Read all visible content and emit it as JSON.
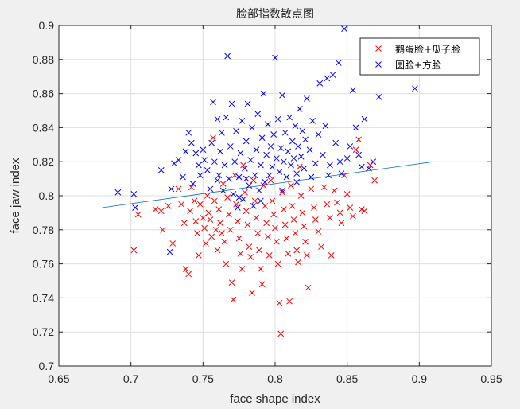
{
  "chart_data": {
    "type": "scatter",
    "title": "脸部指数散点图",
    "xlabel": "face shape index",
    "ylabel": "face jaw index",
    "xlim": [
      0.65,
      0.95
    ],
    "ylim": [
      0.7,
      0.9
    ],
    "xticks": [
      "0.65",
      "0.7",
      "0.75",
      "0.8",
      "0.85",
      "0.9",
      "0.95"
    ],
    "yticks": [
      "0.7",
      "0.72",
      "0.74",
      "0.76",
      "0.78",
      "0.8",
      "0.82",
      "0.84",
      "0.86",
      "0.88",
      "0.9"
    ],
    "grid": true,
    "legend_position": "top-right",
    "series": [
      {
        "name": "鹅蛋脸+瓜子脸",
        "color": "#ff0000",
        "marker": "x",
        "points": [
          [
            0.702,
            0.768
          ],
          [
            0.705,
            0.789
          ],
          [
            0.717,
            0.792
          ],
          [
            0.721,
            0.791
          ],
          [
            0.722,
            0.78
          ],
          [
            0.726,
            0.794
          ],
          [
            0.729,
            0.772
          ],
          [
            0.733,
            0.804
          ],
          [
            0.735,
            0.795
          ],
          [
            0.737,
            0.784
          ],
          [
            0.738,
            0.757
          ],
          [
            0.74,
            0.754
          ],
          [
            0.741,
            0.791
          ],
          [
            0.742,
            0.805
          ],
          [
            0.744,
            0.797
          ],
          [
            0.745,
            0.785
          ],
          [
            0.746,
            0.778
          ],
          [
            0.747,
            0.765
          ],
          [
            0.748,
            0.795
          ],
          [
            0.75,
            0.787
          ],
          [
            0.751,
            0.781
          ],
          [
            0.752,
            0.772
          ],
          [
            0.753,
            0.8
          ],
          [
            0.754,
            0.79
          ],
          [
            0.755,
            0.786
          ],
          [
            0.756,
            0.776
          ],
          [
            0.757,
            0.834
          ],
          [
            0.758,
            0.797
          ],
          [
            0.759,
            0.78
          ],
          [
            0.76,
            0.768
          ],
          [
            0.761,
            0.792
          ],
          [
            0.762,
            0.784
          ],
          [
            0.763,
            0.778
          ],
          [
            0.764,
            0.807
          ],
          [
            0.765,
            0.773
          ],
          [
            0.766,
            0.76
          ],
          [
            0.767,
            0.799
          ],
          [
            0.768,
            0.789
          ],
          [
            0.769,
            0.78
          ],
          [
            0.77,
            0.749
          ],
          [
            0.771,
            0.739
          ],
          [
            0.772,
            0.812
          ],
          [
            0.773,
            0.795
          ],
          [
            0.774,
            0.785
          ],
          [
            0.775,
            0.775
          ],
          [
            0.776,
            0.766
          ],
          [
            0.777,
            0.757
          ],
          [
            0.778,
            0.818
          ],
          [
            0.779,
            0.802
          ],
          [
            0.78,
            0.791
          ],
          [
            0.781,
            0.783
          ],
          [
            0.782,
            0.77
          ],
          [
            0.783,
            0.764
          ],
          [
            0.784,
            0.743
          ],
          [
            0.785,
            0.809
          ],
          [
            0.786,
            0.797
          ],
          [
            0.787,
            0.787
          ],
          [
            0.788,
            0.778
          ],
          [
            0.789,
            0.768
          ],
          [
            0.79,
            0.757
          ],
          [
            0.791,
            0.748
          ],
          [
            0.792,
            0.806
          ],
          [
            0.793,
            0.794
          ],
          [
            0.794,
            0.784
          ],
          [
            0.795,
            0.776
          ],
          [
            0.796,
            0.765
          ],
          [
            0.797,
            0.809
          ],
          [
            0.798,
            0.797
          ],
          [
            0.799,
            0.789
          ],
          [
            0.8,
            0.781
          ],
          [
            0.801,
            0.773
          ],
          [
            0.802,
            0.76
          ],
          [
            0.803,
            0.737
          ],
          [
            0.804,
            0.719
          ],
          [
            0.805,
            0.802
          ],
          [
            0.806,
            0.792
          ],
          [
            0.807,
            0.783
          ],
          [
            0.808,
            0.775
          ],
          [
            0.809,
            0.766
          ],
          [
            0.81,
            0.738
          ],
          [
            0.811,
            0.806
          ],
          [
            0.812,
            0.794
          ],
          [
            0.813,
            0.786
          ],
          [
            0.814,
            0.778
          ],
          [
            0.815,
            0.768
          ],
          [
            0.816,
            0.761
          ],
          [
            0.817,
            0.817
          ],
          [
            0.818,
            0.8
          ],
          [
            0.819,
            0.79
          ],
          [
            0.82,
            0.782
          ],
          [
            0.821,
            0.773
          ],
          [
            0.822,
            0.765
          ],
          [
            0.823,
            0.746
          ],
          [
            0.825,
            0.804
          ],
          [
            0.827,
            0.793
          ],
          [
            0.828,
            0.786
          ],
          [
            0.83,
            0.779
          ],
          [
            0.832,
            0.77
          ],
          [
            0.834,
            0.805
          ],
          [
            0.836,
            0.795
          ],
          [
            0.838,
            0.787
          ],
          [
            0.839,
            0.765
          ],
          [
            0.841,
            0.803
          ],
          [
            0.843,
            0.796
          ],
          [
            0.845,
            0.79
          ],
          [
            0.846,
            0.784
          ],
          [
            0.848,
            0.812
          ],
          [
            0.85,
            0.801
          ],
          [
            0.852,
            0.793
          ],
          [
            0.854,
            0.788
          ],
          [
            0.856,
            0.827
          ],
          [
            0.858,
            0.833
          ],
          [
            0.86,
            0.792
          ],
          [
            0.862,
            0.791
          ],
          [
            0.866,
            0.818
          ],
          [
            0.869,
            0.809
          ]
        ]
      },
      {
        "name": "圆脸+方脸",
        "color": "#0000ff",
        "marker": "x",
        "points": [
          [
            0.691,
            0.802
          ],
          [
            0.702,
            0.801
          ],
          [
            0.703,
            0.793
          ],
          [
            0.721,
            0.815
          ],
          [
            0.727,
            0.767
          ],
          [
            0.728,
            0.804
          ],
          [
            0.73,
            0.819
          ],
          [
            0.733,
            0.821
          ],
          [
            0.736,
            0.811
          ],
          [
            0.738,
            0.826
          ],
          [
            0.74,
            0.837
          ],
          [
            0.742,
            0.831
          ],
          [
            0.743,
            0.807
          ],
          [
            0.745,
            0.825
          ],
          [
            0.747,
            0.818
          ],
          [
            0.748,
            0.812
          ],
          [
            0.75,
            0.827
          ],
          [
            0.751,
            0.821
          ],
          [
            0.753,
            0.815
          ],
          [
            0.755,
            0.804
          ],
          [
            0.756,
            0.831
          ],
          [
            0.757,
            0.855
          ],
          [
            0.758,
            0.82
          ],
          [
            0.76,
            0.845
          ],
          [
            0.761,
            0.812
          ],
          [
            0.762,
            0.826
          ],
          [
            0.763,
            0.837
          ],
          [
            0.764,
            0.803
          ],
          [
            0.765,
            0.818
          ],
          [
            0.766,
            0.846
          ],
          [
            0.767,
            0.882
          ],
          [
            0.768,
            0.81
          ],
          [
            0.769,
            0.829
          ],
          [
            0.77,
            0.854
          ],
          [
            0.771,
            0.801
          ],
          [
            0.772,
            0.82
          ],
          [
            0.773,
            0.838
          ],
          [
            0.774,
            0.793
          ],
          [
            0.775,
            0.811
          ],
          [
            0.776,
            0.825
          ],
          [
            0.777,
            0.844
          ],
          [
            0.778,
            0.798
          ],
          [
            0.779,
            0.816
          ],
          [
            0.78,
            0.832
          ],
          [
            0.781,
            0.854
          ],
          [
            0.782,
            0.806
          ],
          [
            0.783,
            0.821
          ],
          [
            0.784,
            0.84
          ],
          [
            0.785,
            0.794
          ],
          [
            0.786,
            0.812
          ],
          [
            0.787,
            0.827
          ],
          [
            0.788,
            0.848
          ],
          [
            0.789,
            0.803
          ],
          [
            0.79,
            0.818
          ],
          [
            0.791,
            0.834
          ],
          [
            0.792,
            0.86
          ],
          [
            0.793,
            0.808
          ],
          [
            0.794,
            0.824
          ],
          [
            0.795,
            0.842
          ],
          [
            0.796,
            0.812
          ],
          [
            0.797,
            0.829
          ],
          [
            0.798,
            0.817
          ],
          [
            0.799,
            0.836
          ],
          [
            0.8,
            0.881
          ],
          [
            0.801,
            0.822
          ],
          [
            0.802,
            0.845
          ],
          [
            0.803,
            0.814
          ],
          [
            0.804,
            0.828
          ],
          [
            0.805,
            0.859
          ],
          [
            0.806,
            0.82
          ],
          [
            0.807,
            0.837
          ],
          [
            0.808,
            0.811
          ],
          [
            0.809,
            0.826
          ],
          [
            0.81,
            0.846
          ],
          [
            0.811,
            0.818
          ],
          [
            0.812,
            0.832
          ],
          [
            0.813,
            0.822
          ],
          [
            0.814,
            0.841
          ],
          [
            0.815,
            0.813
          ],
          [
            0.816,
            0.829
          ],
          [
            0.817,
            0.851
          ],
          [
            0.818,
            0.823
          ],
          [
            0.819,
            0.838
          ],
          [
            0.82,
            0.816
          ],
          [
            0.821,
            0.833
          ],
          [
            0.822,
            0.857
          ],
          [
            0.824,
            0.827
          ],
          [
            0.826,
            0.844
          ],
          [
            0.828,
            0.819
          ],
          [
            0.83,
            0.836
          ],
          [
            0.831,
            0.866
          ],
          [
            0.833,
            0.824
          ],
          [
            0.835,
            0.841
          ],
          [
            0.836,
            0.869
          ],
          [
            0.838,
            0.818
          ],
          [
            0.84,
            0.871
          ],
          [
            0.842,
            0.831
          ],
          [
            0.844,
            0.878
          ],
          [
            0.846,
            0.813
          ],
          [
            0.848,
            0.898
          ],
          [
            0.85,
            0.822
          ],
          [
            0.852,
            0.829
          ],
          [
            0.854,
            0.862
          ],
          [
            0.856,
            0.84
          ],
          [
            0.858,
            0.824
          ],
          [
            0.86,
            0.817
          ],
          [
            0.862,
            0.845
          ],
          [
            0.865,
            0.816
          ],
          [
            0.868,
            0.82
          ],
          [
            0.872,
            0.858
          ],
          [
            0.897,
            0.863
          ],
          [
            0.837,
            0.812
          ],
          [
            0.805,
            0.803
          ],
          [
            0.79,
            0.797
          ],
          [
            0.775,
            0.799
          ],
          [
            0.76,
            0.809
          ],
          [
            0.815,
            0.808
          ],
          [
            0.825,
            0.811
          ],
          [
            0.845,
            0.82
          ],
          [
            0.78,
            0.81
          ]
        ]
      }
    ],
    "fit_line": {
      "x": [
        0.68,
        0.91
      ],
      "y": [
        0.793,
        0.82
      ],
      "color": "#0072bd"
    }
  }
}
